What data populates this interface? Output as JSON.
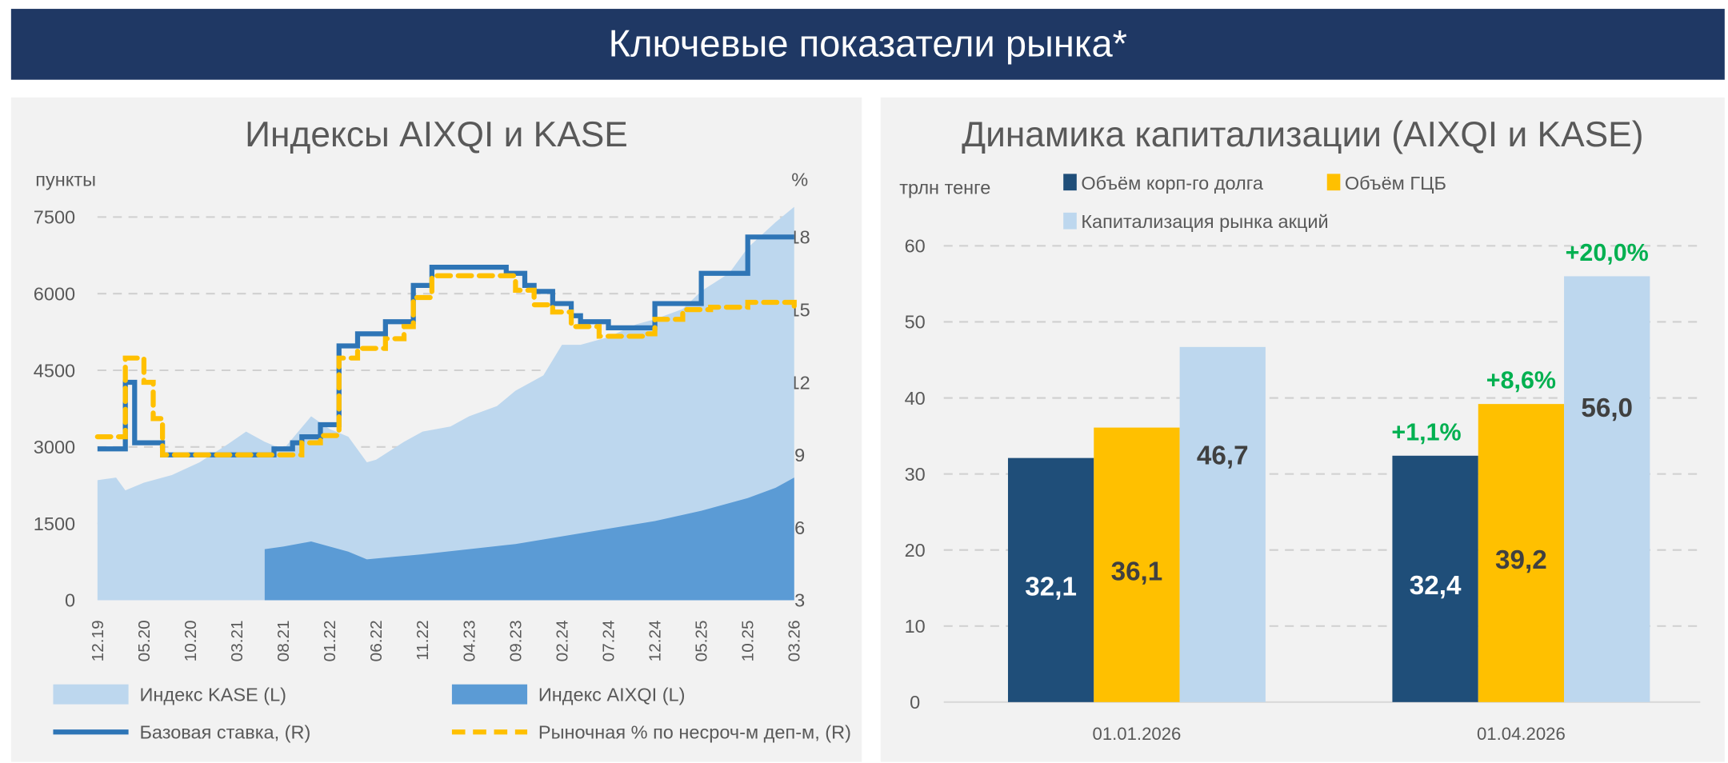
{
  "header": {
    "title": "Ключевые показатели рынка*"
  },
  "colors": {
    "header": "#1f3864",
    "kase": "#bdd7ee",
    "aixqi": "#5b9bd5",
    "base_rate": "#2e75b6",
    "deposit_rate": "#ffc000",
    "corp_debt": "#1f4e79",
    "gsb": "#ffc000",
    "capitalization": "#bdd7ee",
    "growth_label": "#00b050"
  },
  "chart_data": [
    {
      "type": "area",
      "title": "Индексы AIXQI и KASE",
      "ylabel_left": "пункты",
      "ylabel_right": "%",
      "ylim_left": [
        0,
        7500
      ],
      "yticks_left": [
        "0",
        "1500",
        "3000",
        "4500",
        "6000",
        "7500"
      ],
      "ylim_right": [
        3,
        18
      ],
      "yticks_right": [
        "3",
        "6",
        "9",
        "12",
        "15",
        "18"
      ],
      "xticks": [
        "12.19",
        "05.20",
        "10.20",
        "03.21",
        "08.21",
        "01.22",
        "06.22",
        "11.22",
        "04.23",
        "09.23",
        "02.24",
        "07.24",
        "12.24",
        "05.25",
        "10.25",
        "03.26"
      ],
      "grid": true,
      "legend_placement": "bottom",
      "series": [
        {
          "name": "Индекс KASE (L)",
          "type": "area",
          "axis": "left",
          "x": [
            "2019-12",
            "2020-02",
            "2020-03",
            "2020-05",
            "2020-08",
            "2020-11",
            "2021-02",
            "2021-04",
            "2021-06",
            "2021-08",
            "2021-11",
            "2022-01",
            "2022-03",
            "2022-05",
            "2022-06",
            "2022-09",
            "2022-11",
            "2023-02",
            "2023-04",
            "2023-07",
            "2023-09",
            "2023-12",
            "2024-02",
            "2024-04",
            "2024-07",
            "2024-10",
            "2024-12",
            "2025-03",
            "2025-05",
            "2025-08",
            "2025-10",
            "2026-01",
            "2026-03"
          ],
          "y": [
            2350,
            2400,
            2150,
            2300,
            2450,
            2700,
            3050,
            3300,
            3100,
            2950,
            3600,
            3350,
            3200,
            2700,
            2750,
            3100,
            3300,
            3400,
            3600,
            3800,
            4100,
            4400,
            5000,
            5000,
            5150,
            5400,
            5500,
            5700,
            6050,
            6400,
            6900,
            7400,
            7700
          ]
        },
        {
          "name": "Индекс AIXQI (L)",
          "type": "area",
          "axis": "left",
          "x": [
            "2021-06",
            "2021-08",
            "2021-11",
            "2022-01",
            "2022-03",
            "2022-05",
            "2022-08",
            "2022-11",
            "2023-04",
            "2023-09",
            "2024-02",
            "2024-07",
            "2024-12",
            "2025-05",
            "2025-10",
            "2026-01",
            "2026-03"
          ],
          "y": [
            1000,
            1050,
            1150,
            1050,
            950,
            800,
            850,
            900,
            1000,
            1100,
            1250,
            1400,
            1550,
            1750,
            2000,
            2200,
            2400
          ]
        },
        {
          "name": "Базовая ставка, (R)",
          "type": "step",
          "axis": "right",
          "x": [
            "2019-12",
            "2020-03",
            "2020-04",
            "2020-07",
            "2021-07",
            "2021-09",
            "2021-10",
            "2021-12",
            "2022-02",
            "2022-04",
            "2022-07",
            "2022-10",
            "2022-12",
            "2023-08",
            "2023-10",
            "2023-11",
            "2024-01",
            "2024-03",
            "2024-04",
            "2024-07",
            "2024-12",
            "2025-05",
            "2025-10",
            "2026-03"
          ],
          "y": [
            9.25,
            12,
            9.5,
            9,
            9.25,
            9.5,
            9.75,
            10.25,
            13.5,
            14,
            14.5,
            16,
            16.75,
            16.5,
            16,
            15.75,
            15.25,
            14.75,
            14.5,
            14.25,
            15.25,
            16.5,
            18,
            18
          ]
        },
        {
          "name": "Рыночная % по несроч-м деп-м, (R)",
          "type": "step-dashed",
          "axis": "right",
          "x": [
            "2019-12",
            "2020-03",
            "2020-05",
            "2020-06",
            "2020-07",
            "2021-09",
            "2021-10",
            "2021-12",
            "2022-02",
            "2022-04",
            "2022-07",
            "2022-09",
            "2022-10",
            "2022-12",
            "2023-08",
            "2023-09",
            "2023-11",
            "2024-01",
            "2024-03",
            "2024-06",
            "2024-11",
            "2024-12",
            "2025-03",
            "2025-06",
            "2025-10",
            "2026-03"
          ],
          "y": [
            9.75,
            13,
            12,
            10.5,
            9,
            9,
            9.5,
            9.8,
            13,
            13.4,
            13.8,
            14.3,
            15.5,
            16.4,
            16.4,
            15.8,
            15.2,
            14.9,
            14.3,
            13.9,
            14,
            14.6,
            15,
            15.1,
            15.3,
            15.1
          ]
        }
      ]
    },
    {
      "type": "bar",
      "title": "Динамика капитализации (AIXQI и KASE)",
      "ylabel": "трлн тенге",
      "ylim": [
        0,
        60
      ],
      "yticks": [
        "0",
        "10",
        "20",
        "30",
        "40",
        "50",
        "60"
      ],
      "categories": [
        "01.01.2026",
        "01.04.2026"
      ],
      "grid": true,
      "legend_placement": "top",
      "series": [
        {
          "name": "Объём корп-го долга",
          "values": [
            32.1,
            32.4
          ],
          "labels": [
            "32,1",
            "32,4"
          ],
          "change": [
            "",
            "+1,1%"
          ]
        },
        {
          "name": "Объём ГЦБ",
          "values": [
            36.1,
            39.2
          ],
          "labels": [
            "36,1",
            "39,2"
          ],
          "change": [
            "",
            "+8,6%"
          ]
        },
        {
          "name": "Капитализация рынка акций",
          "values": [
            46.7,
            56.0
          ],
          "labels": [
            "46,7",
            "56,0"
          ],
          "change": [
            "",
            "+20,0%"
          ]
        }
      ]
    }
  ]
}
